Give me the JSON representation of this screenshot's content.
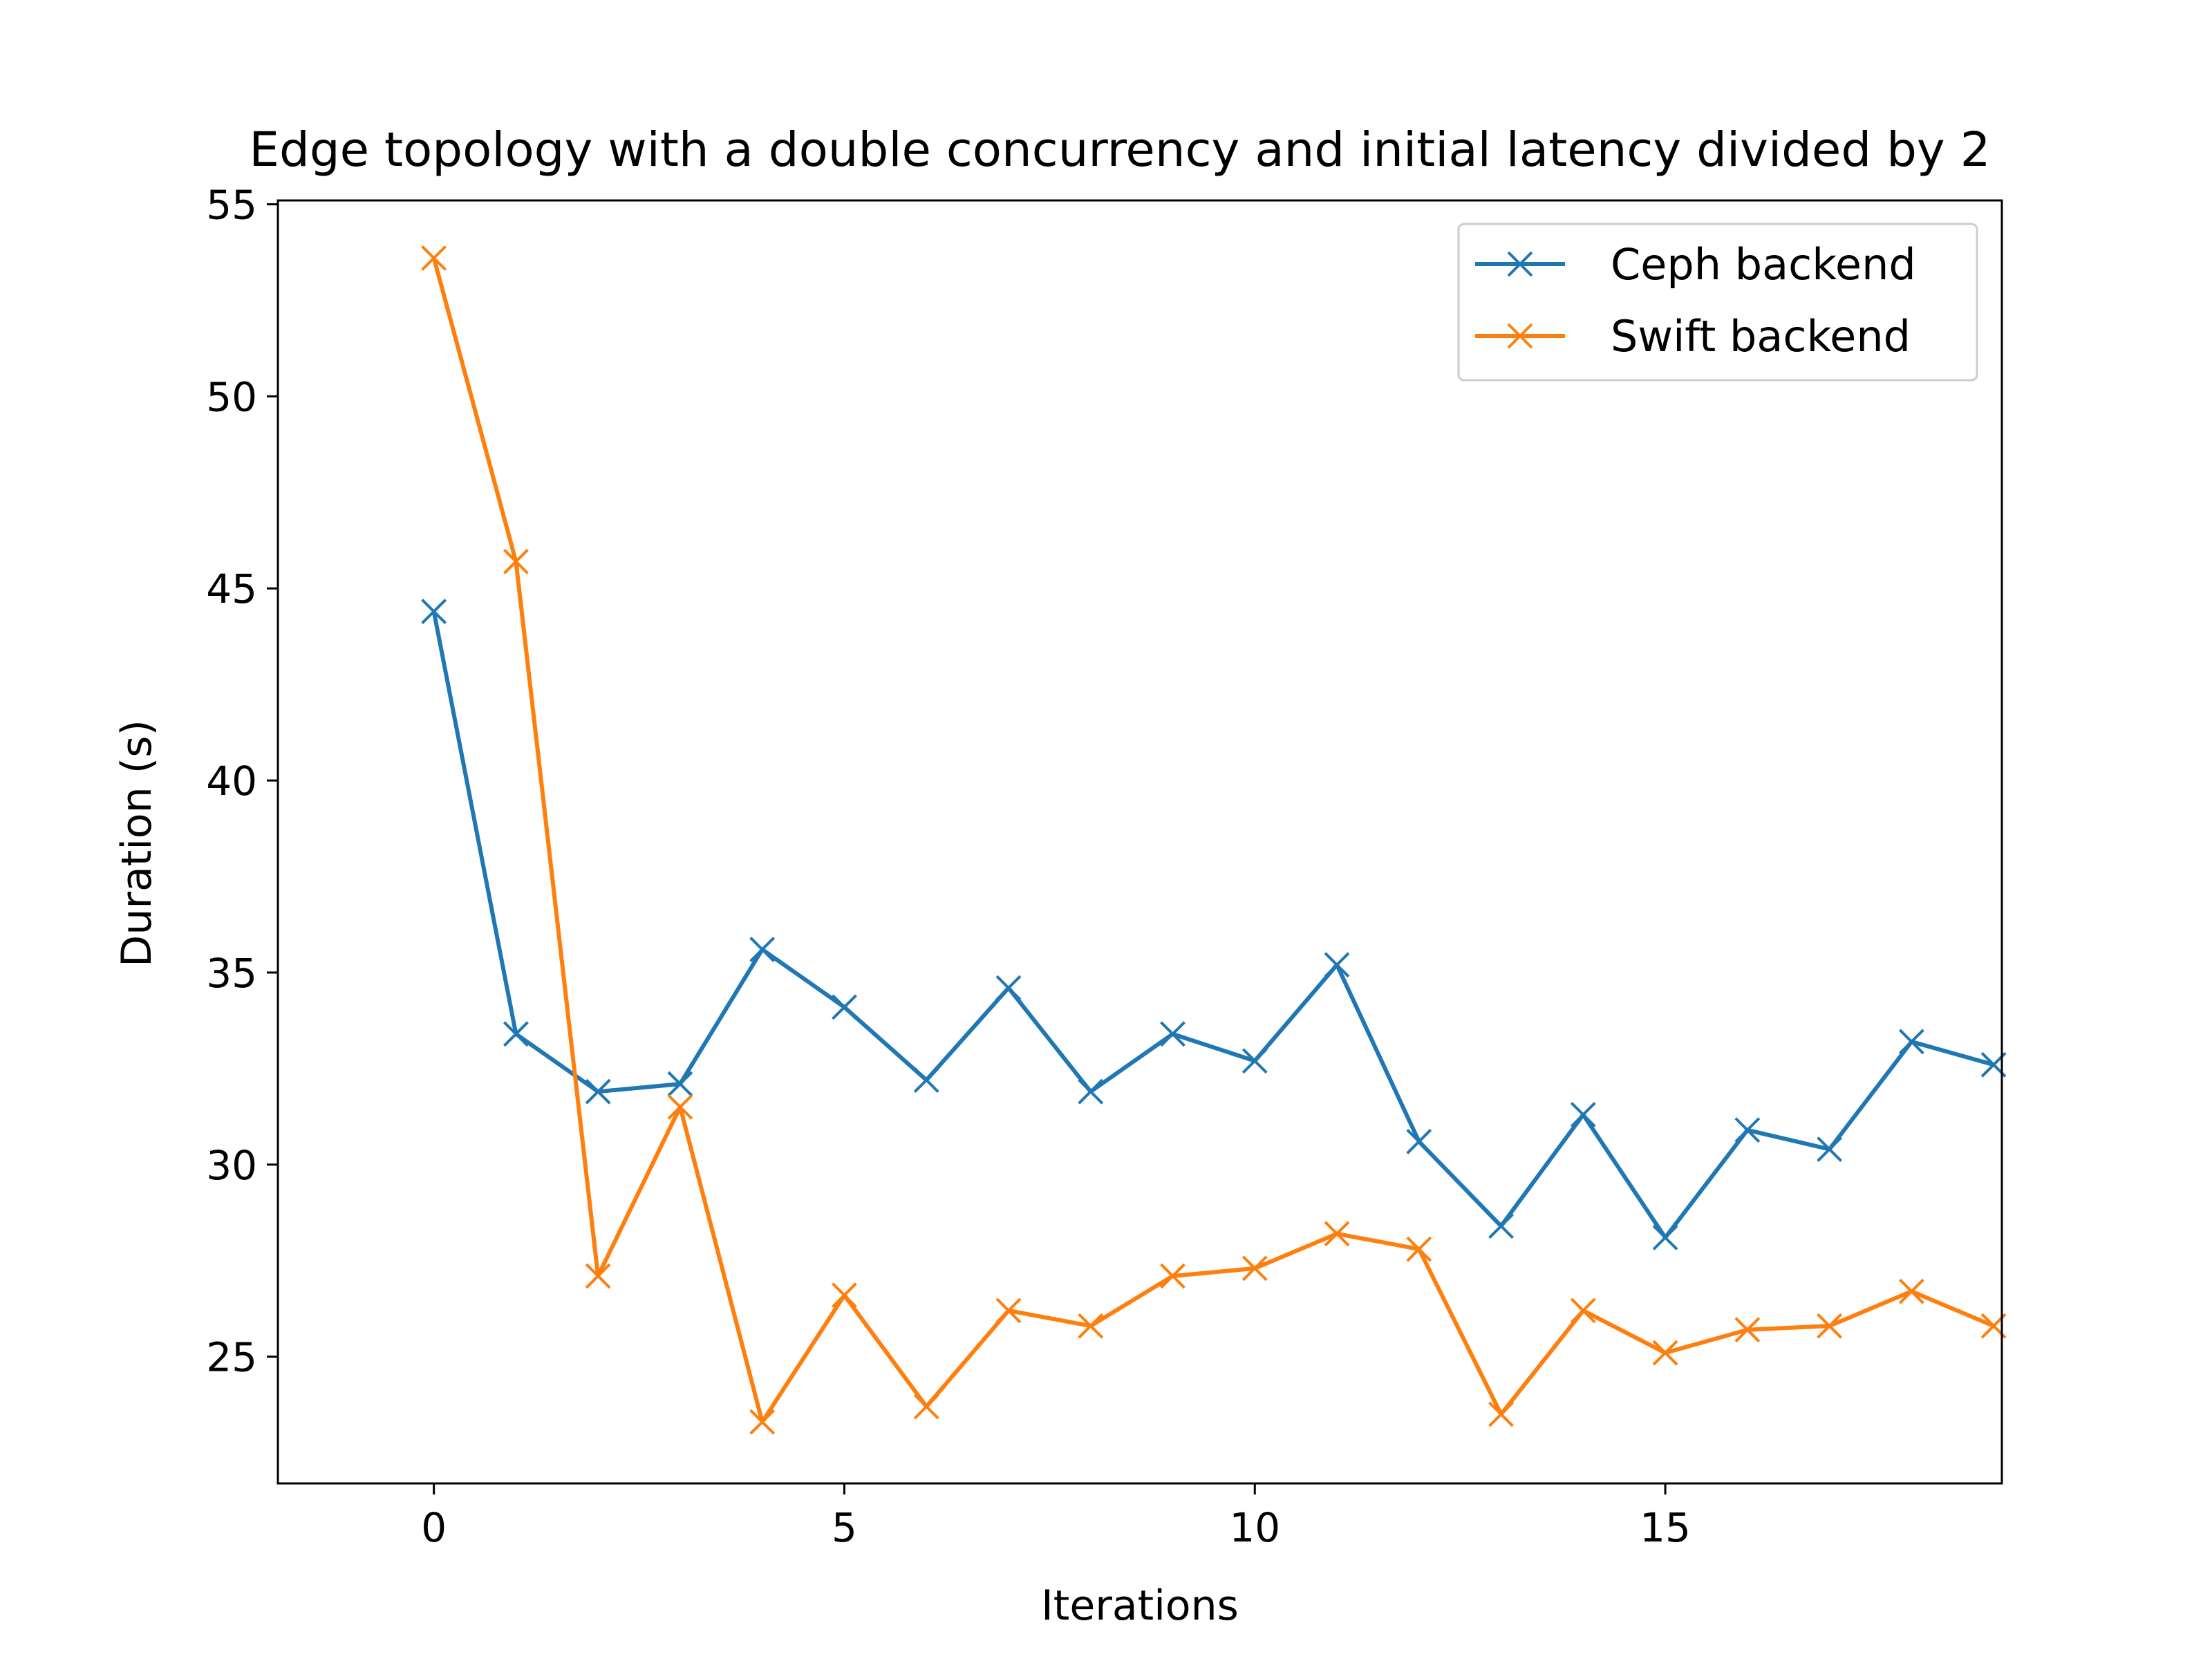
{
  "chart_data": {
    "type": "line",
    "title": "Edge topology with a double concurrency and initial latency divided by 2",
    "xlabel": "Iterations",
    "ylabel": "Duration (s)",
    "xlim": [
      -1.9,
      19.1
    ],
    "ylim": [
      21.7,
      55.1
    ],
    "x_ticks": [
      0,
      5,
      10,
      15
    ],
    "y_ticks": [
      25,
      30,
      35,
      40,
      45,
      50,
      55
    ],
    "grid": false,
    "legend_position": "top-right",
    "marker": "x",
    "x": [
      0,
      1,
      2,
      3,
      4,
      5,
      6,
      7,
      8,
      9,
      10,
      11,
      12,
      13,
      14,
      15,
      16,
      17,
      18,
      19
    ],
    "series": [
      {
        "name": "Ceph backend",
        "color": "#1f77b4",
        "values": [
          44.4,
          33.4,
          31.9,
          32.1,
          35.6,
          34.1,
          32.2,
          34.6,
          31.9,
          33.4,
          32.7,
          35.2,
          30.6,
          28.4,
          31.3,
          28.1,
          30.9,
          30.4,
          33.2,
          32.6
        ]
      },
      {
        "name": "Swift backend",
        "color": "#ff7f0e",
        "values": [
          53.6,
          45.7,
          27.1,
          31.5,
          23.3,
          26.6,
          23.7,
          26.2,
          25.8,
          27.1,
          27.3,
          28.2,
          27.8,
          23.5,
          26.2,
          25.1,
          25.7,
          25.8,
          26.7,
          25.8
        ]
      }
    ]
  }
}
